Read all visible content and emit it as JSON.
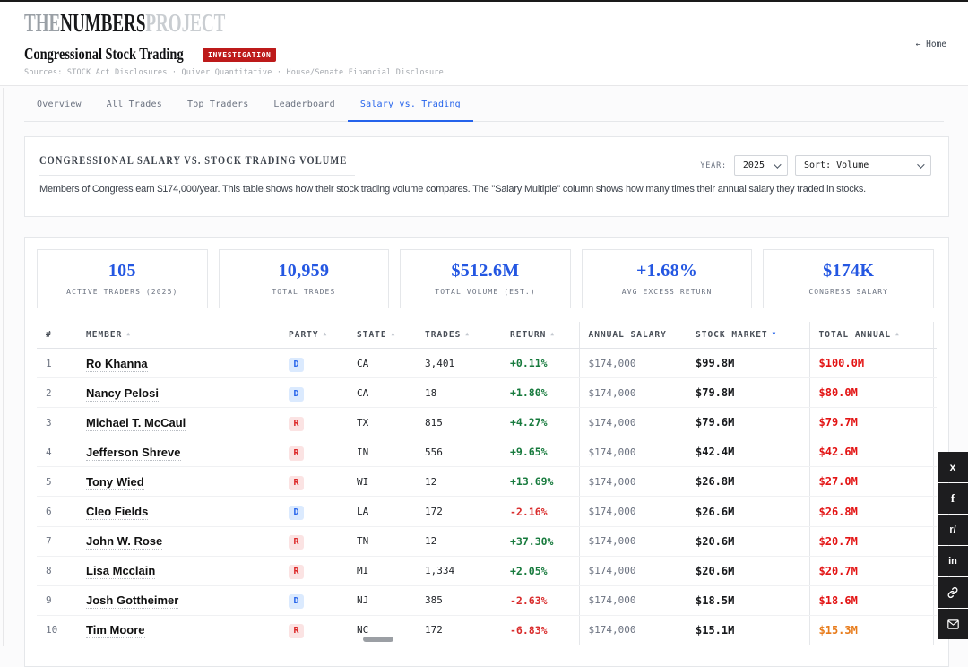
{
  "header": {
    "logo": {
      "the": "THE",
      "numbers": "NUMBERS",
      "project": "PROJECT"
    },
    "title": "Congressional Stock Trading",
    "badge": "INVESTIGATION",
    "sources": "Sources: STOCK Act Disclosures · Quiver Quantitative · House/Senate Financial Disclosure",
    "home_link": "← Home"
  },
  "tabs": [
    {
      "label": "Overview",
      "active": false
    },
    {
      "label": "All Trades",
      "active": false
    },
    {
      "label": "Top Traders",
      "active": false
    },
    {
      "label": "Leaderboard",
      "active": false
    },
    {
      "label": "Salary vs. Trading",
      "active": true
    }
  ],
  "filters": {
    "section_title": "CONGRESSIONAL SALARY VS. STOCK TRADING VOLUME",
    "description": "Members of Congress earn $174,000/year. This table shows how their stock trading volume compares. The \"Salary Multiple\" column shows how many times their annual salary they traded in stocks.",
    "year_label": "YEAR:",
    "year_value": "2025",
    "sort_value": "Sort: Volume"
  },
  "stats": [
    {
      "value": "105",
      "label": "ACTIVE TRADERS (2025)"
    },
    {
      "value": "10,959",
      "label": "TOTAL TRADES"
    },
    {
      "value": "$512.6M",
      "label": "TOTAL VOLUME (EST.)"
    },
    {
      "value": "+1.68%",
      "label": "AVG EXCESS RETURN"
    },
    {
      "value": "$174K",
      "label": "CONGRESS SALARY"
    }
  ],
  "table": {
    "columns": [
      {
        "label": "#",
        "sort": ""
      },
      {
        "label": "MEMBER",
        "sort": "asc"
      },
      {
        "label": "PARTY",
        "sort": "asc"
      },
      {
        "label": "STATE",
        "sort": "asc"
      },
      {
        "label": "TRADES",
        "sort": "asc"
      },
      {
        "label": "RETURN",
        "sort": "asc"
      },
      {
        "label": "ANNUAL SALARY",
        "sort": ""
      },
      {
        "label": "STOCK MARKET",
        "sort": "desc",
        "active": true
      },
      {
        "label": "TOTAL ANNUAL",
        "sort": "asc"
      }
    ],
    "rows": [
      {
        "rank": "1",
        "member": "Ro Khanna",
        "party": "D",
        "state": "CA",
        "trades": "3,401",
        "return": "+0.11%",
        "return_tone": "positive",
        "salary": "$174,000",
        "stock": "$99.8M",
        "total": "$100.0M",
        "total_tone": "red"
      },
      {
        "rank": "2",
        "member": "Nancy Pelosi",
        "party": "D",
        "state": "CA",
        "trades": "18",
        "return": "+1.80%",
        "return_tone": "positive",
        "salary": "$174,000",
        "stock": "$79.8M",
        "total": "$80.0M",
        "total_tone": "red"
      },
      {
        "rank": "3",
        "member": "Michael T. McCaul",
        "party": "R",
        "state": "TX",
        "trades": "815",
        "return": "+4.27%",
        "return_tone": "positive",
        "salary": "$174,000",
        "stock": "$79.6M",
        "total": "$79.7M",
        "total_tone": "red"
      },
      {
        "rank": "4",
        "member": "Jefferson Shreve",
        "party": "R",
        "state": "IN",
        "trades": "556",
        "return": "+9.65%",
        "return_tone": "positive",
        "salary": "$174,000",
        "stock": "$42.4M",
        "total": "$42.6M",
        "total_tone": "red"
      },
      {
        "rank": "5",
        "member": "Tony Wied",
        "party": "R",
        "state": "WI",
        "trades": "12",
        "return": "+13.69%",
        "return_tone": "positive",
        "salary": "$174,000",
        "stock": "$26.8M",
        "total": "$27.0M",
        "total_tone": "red"
      },
      {
        "rank": "6",
        "member": "Cleo Fields",
        "party": "D",
        "state": "LA",
        "trades": "172",
        "return": "-2.16%",
        "return_tone": "negative",
        "salary": "$174,000",
        "stock": "$26.6M",
        "total": "$26.8M",
        "total_tone": "red"
      },
      {
        "rank": "7",
        "member": "John W. Rose",
        "party": "R",
        "state": "TN",
        "trades": "12",
        "return": "+37.30%",
        "return_tone": "positive",
        "salary": "$174,000",
        "stock": "$20.6M",
        "total": "$20.7M",
        "total_tone": "red"
      },
      {
        "rank": "8",
        "member": "Lisa Mcclain",
        "party": "R",
        "state": "MI",
        "trades": "1,334",
        "return": "+2.05%",
        "return_tone": "positive",
        "salary": "$174,000",
        "stock": "$20.6M",
        "total": "$20.7M",
        "total_tone": "red"
      },
      {
        "rank": "9",
        "member": "Josh Gottheimer",
        "party": "D",
        "state": "NJ",
        "trades": "385",
        "return": "-2.63%",
        "return_tone": "negative",
        "salary": "$174,000",
        "stock": "$18.5M",
        "total": "$18.6M",
        "total_tone": "red"
      },
      {
        "rank": "10",
        "member": "Tim Moore",
        "party": "R",
        "state": "NC",
        "trades": "172",
        "return": "-6.83%",
        "return_tone": "negative",
        "salary": "$174,000",
        "stock": "$15.1M",
        "total": "$15.3M",
        "total_tone": "orange"
      }
    ]
  },
  "share": {
    "x": "x",
    "facebook": "f",
    "reddit": "r/",
    "linkedin": "in"
  },
  "colors": {
    "accent_blue": "#2563eb",
    "stat_blue": "#2457e2",
    "badge_red": "#bd1a1a",
    "positive_green": "#177a3d",
    "negative_red": "#d92b2b",
    "total_red": "#e31414",
    "total_orange": "#e87b1a",
    "dem_blue": "#2563eb",
    "rep_red": "#dc2626"
  }
}
